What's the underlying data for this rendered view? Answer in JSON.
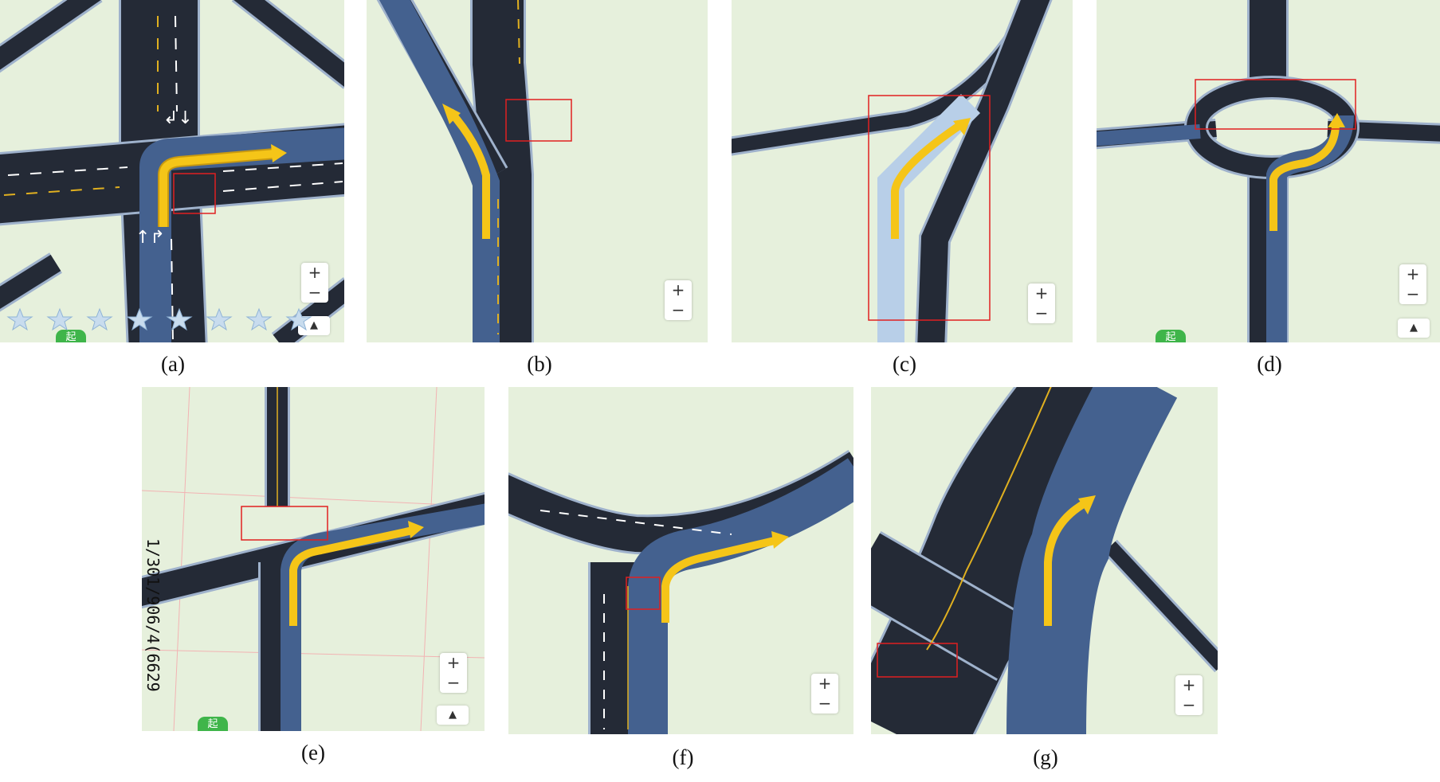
{
  "panels": [
    {
      "id": "a",
      "caption": "(a)",
      "zoom_in": "+",
      "zoom_out": "−",
      "locate_icon": "navigation-arrow-icon",
      "start_badge": "起"
    },
    {
      "id": "b",
      "caption": "(b)",
      "zoom_in": "+",
      "zoom_out": "−"
    },
    {
      "id": "c",
      "caption": "(c)",
      "zoom_in": "+",
      "zoom_out": "−"
    },
    {
      "id": "d",
      "caption": "(d)",
      "zoom_in": "+",
      "zoom_out": "−",
      "locate_icon": "navigation-arrow-icon",
      "start_badge": "起"
    },
    {
      "id": "e",
      "caption": "(e)",
      "zoom_in": "+",
      "zoom_out": "−",
      "locate_icon": "navigation-arrow-icon",
      "start_badge": "起",
      "side_text": "1/301/906/4(6629"
    },
    {
      "id": "f",
      "caption": "(f)",
      "zoom_in": "+",
      "zoom_out": "−"
    },
    {
      "id": "g",
      "caption": "(g)",
      "zoom_in": "+",
      "zoom_out": "−"
    }
  ],
  "colors": {
    "map_bg": "#e6f0dc",
    "road": "#242a36",
    "road_edge": "#9fb2cc",
    "route": "#44618f",
    "arrow": "#f5c518",
    "highlight_box": "#e02020",
    "lane_mark": "#ffffff",
    "center_line": "#e0b020"
  }
}
